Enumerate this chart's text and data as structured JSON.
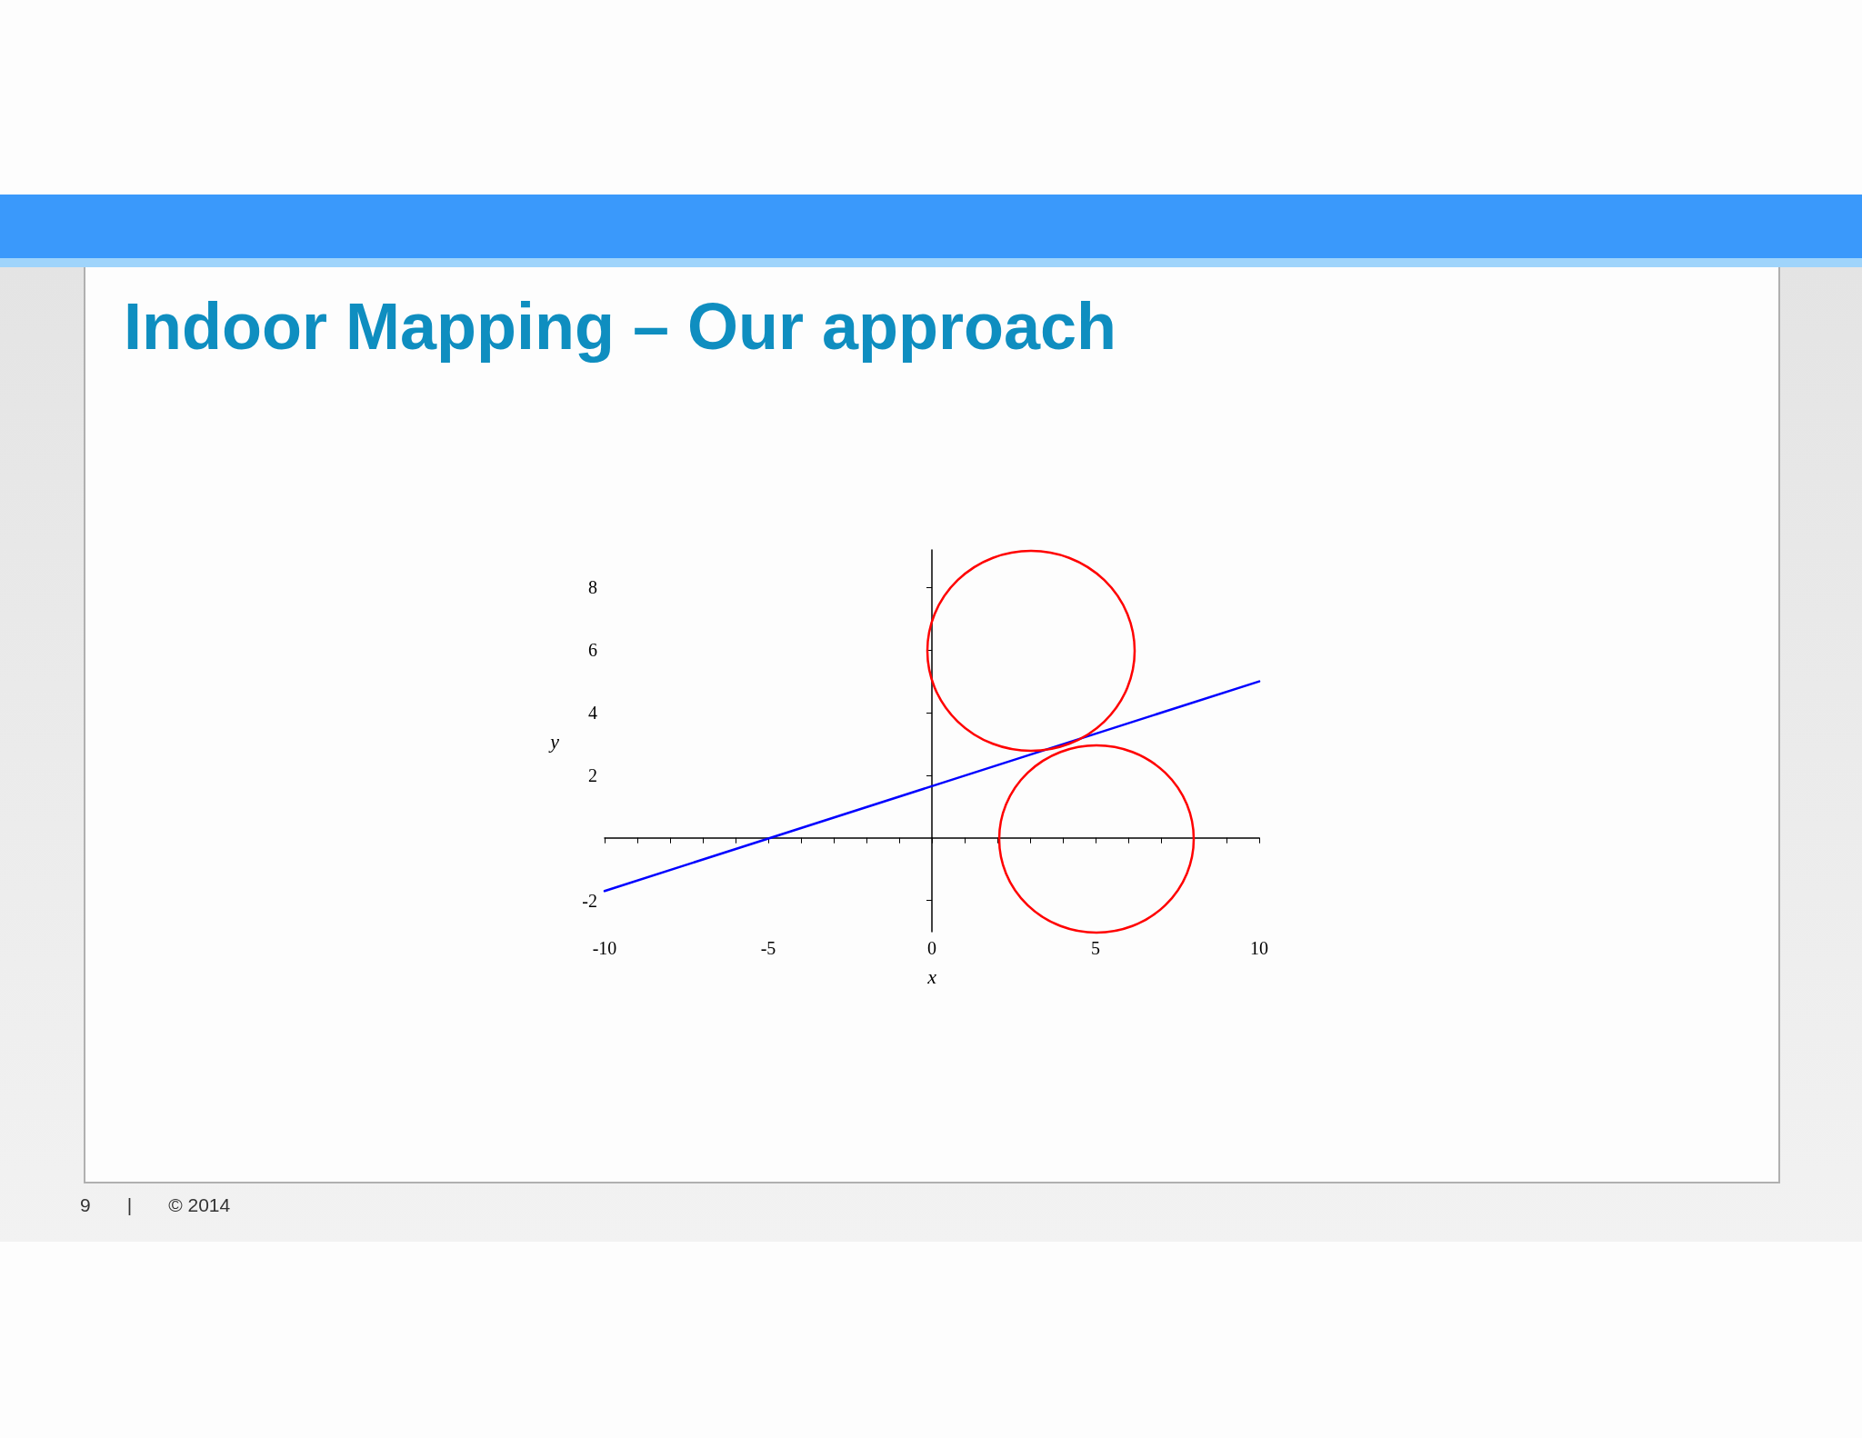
{
  "chart_data": {
    "type": "line",
    "title": "Indoor Mapping – Our approach",
    "xlabel": "x",
    "ylabel": "y",
    "annotations": [
      "9",
      "|",
      "© 2014"
    ],
    "xlim": [
      -10,
      10
    ],
    "ylim": [
      -3,
      9.2
    ],
    "xticks": [
      -10,
      {
        "value": -9,
        "label": null
      },
      {
        "value": -8,
        "label": null
      },
      {
        "value": -7,
        "label": null
      },
      {
        "value": -6,
        "label": null
      },
      -5,
      {
        "value": -4,
        "label": null
      },
      {
        "value": -3,
        "label": null
      },
      {
        "value": -2,
        "label": null
      },
      {
        "value": -1,
        "label": null
      },
      0,
      {
        "value": 1,
        "label": null
      },
      {
        "value": 2,
        "label": null
      },
      {
        "value": 3,
        "label": null
      },
      {
        "value": 4,
        "label": null
      },
      5,
      {
        "value": 6,
        "label": null
      },
      {
        "value": 7,
        "label": null
      },
      {
        "value": 8,
        "label": null
      },
      {
        "value": 9,
        "label": null
      },
      10
    ],
    "yticks": [
      -2,
      2,
      4,
      6,
      8
    ],
    "marker": "none",
    "line_style": "solid",
    "series": [
      {
        "color": "#0000ff",
        "x": [
          -10,
          10
        ],
        "values": [
          -1.7,
          5
        ]
      }
    ]
  }
}
